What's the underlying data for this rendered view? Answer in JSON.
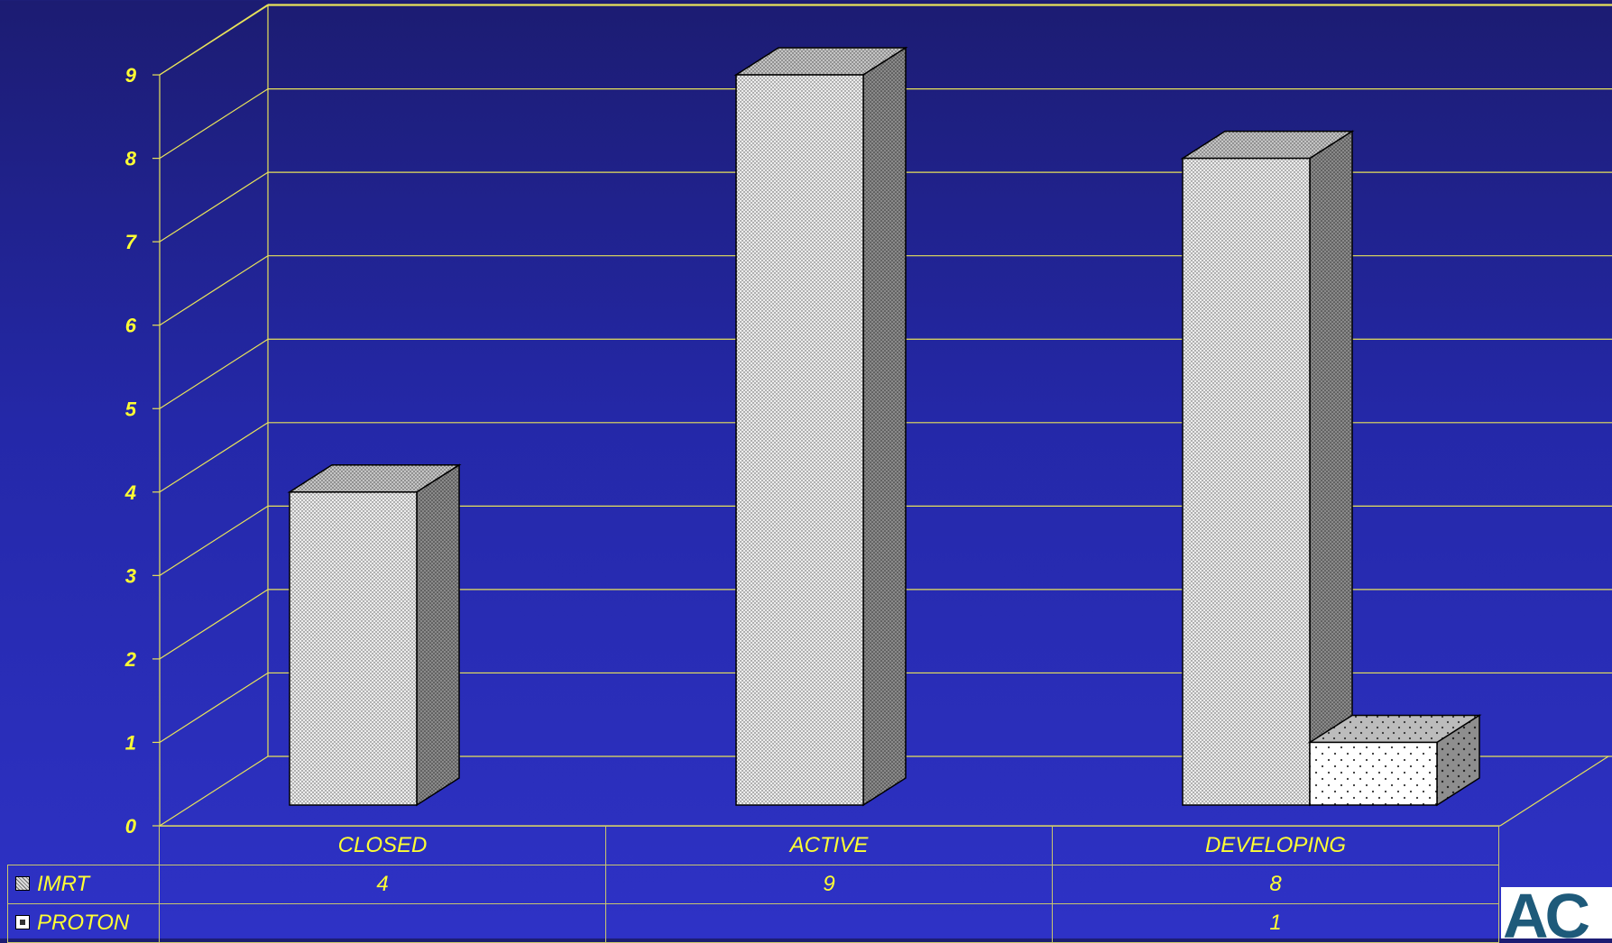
{
  "chart_data": {
    "type": "bar",
    "categories": [
      "CLOSED",
      "ACTIVE",
      "DEVELOPING"
    ],
    "series": [
      {
        "name": "IMRT",
        "values": [
          4,
          9,
          8
        ]
      },
      {
        "name": "PROTON",
        "values": [
          null,
          null,
          1
        ]
      }
    ],
    "y_ticks": [
      "0",
      "1",
      "2",
      "3",
      "4",
      "5",
      "6",
      "7",
      "8",
      "9"
    ],
    "ylim": [
      0,
      9
    ],
    "grid": true,
    "three_d": true,
    "data_table": true
  },
  "table": {
    "rows": [
      {
        "series": "IMRT",
        "cells": [
          "4",
          "9",
          "8"
        ]
      },
      {
        "series": "PROTON",
        "cells": [
          "",
          "",
          "1"
        ]
      }
    ]
  },
  "logo": {
    "text": "AC"
  },
  "colors": {
    "gridline": "#e8e35a",
    "labels": "#ffff33",
    "bar_front": "#e6e6e6",
    "bar_side": "#7a7a7a",
    "bar_top": "#b4b4b4"
  }
}
